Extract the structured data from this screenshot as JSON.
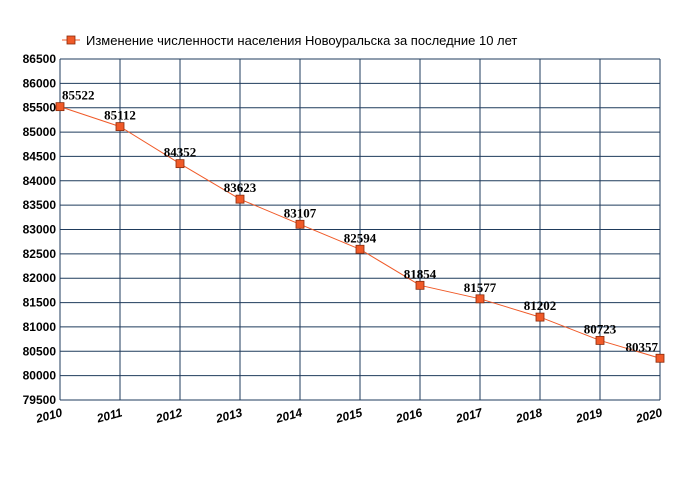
{
  "chart_data": {
    "type": "line",
    "title": "",
    "xlabel": "",
    "ylabel": "",
    "legend": {
      "position": "top-left",
      "entries": [
        "Изменение численности населения Новоуральска за последние 10 лет"
      ]
    },
    "x": [
      2010,
      2011,
      2012,
      2013,
      2014,
      2015,
      2016,
      2017,
      2018,
      2019,
      2020
    ],
    "series": [
      {
        "name": "Изменение численности населения Новоуральска за последние 10 лет",
        "values": [
          85522,
          85112,
          84352,
          83623,
          83107,
          82594,
          81854,
          81577,
          81202,
          80723,
          80357
        ],
        "color": "#f05a28",
        "marker": "square"
      }
    ],
    "xlim": [
      2010,
      2020
    ],
    "ylim": [
      79500,
      86500
    ],
    "ytick_step": 500,
    "grid": true,
    "grid_color": "#1f3b5c",
    "data_labels": true
  }
}
